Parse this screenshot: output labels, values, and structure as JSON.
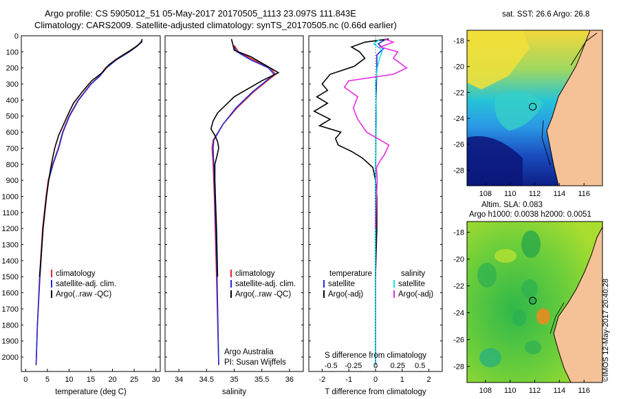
{
  "header": {
    "line1": "Argo profile: CS 5905012_51 05-May-2017 20170505_1113 23.097S 111.843E",
    "line2": "Climatology: CARS2009. Satellite-adjusted climatology: synTS_20170505.nc (0.66d earlier)"
  },
  "colors": {
    "clim": "#e8202a",
    "sat": "#1e2bd6",
    "argo": "#000000",
    "sal_sat": "#19e2e8",
    "sal_argo": "#e62ee6"
  },
  "chart_data": [
    {
      "type": "line",
      "name": "temperature",
      "xlabel": "temperature (deg C)",
      "xlim": [
        -1,
        31
      ],
      "ylim": [
        0,
        2090
      ],
      "yticks": [
        0,
        100,
        200,
        300,
        400,
        500,
        600,
        700,
        800,
        900,
        1000,
        1100,
        1200,
        1300,
        1400,
        1500,
        1600,
        1700,
        1800,
        1900,
        2000
      ],
      "ytick_labels": [
        "0",
        "100",
        "200",
        "300",
        "400",
        "500",
        "600",
        "700",
        "800",
        "900",
        "1000",
        "1100",
        "1200",
        "1300",
        "1400",
        "1500",
        "1600",
        "1700",
        "1800",
        "1900",
        "2000"
      ],
      "xticks": [
        0,
        5,
        10,
        15,
        20,
        25,
        30
      ],
      "xtick_labels": [
        "0",
        "5",
        "10",
        "15",
        "20",
        "25",
        "30"
      ],
      "legend": [
        "climatology",
        "satellite-adj. clim.",
        "Argo(..raw -QC)"
      ],
      "series": [
        {
          "name": "climatology",
          "depth": [
            30,
            60,
            100,
            150,
            200,
            250,
            300,
            400,
            500,
            600,
            700,
            800,
            900,
            1000,
            1200,
            1500,
            1800,
            2050
          ],
          "values": [
            26.8,
            25.8,
            23.6,
            20.6,
            18.4,
            17.0,
            15.0,
            12.1,
            10.0,
            8.5,
            7.5,
            6.2,
            5.2,
            4.7,
            3.9,
            3.2,
            2.7,
            2.4
          ]
        },
        {
          "name": "satellite-adj. clim.",
          "depth": [
            30,
            60,
            100,
            150,
            200,
            250,
            300,
            400,
            500,
            600,
            700,
            800,
            900,
            1000,
            1200,
            1500,
            1800,
            2050
          ],
          "values": [
            26.8,
            25.9,
            23.9,
            20.9,
            18.6,
            17.1,
            15.1,
            12.2,
            10.1,
            8.6,
            7.6,
            6.3,
            5.3,
            4.8,
            4.0,
            3.3,
            2.7,
            2.4
          ]
        },
        {
          "name": "Argo(..raw -QC)",
          "depth": [
            20,
            40,
            80,
            130,
            180,
            230,
            280,
            350,
            420,
            500,
            560,
            620,
            680,
            700,
            760,
            820,
            900,
            1000,
            1200,
            1400,
            1500
          ],
          "values": [
            26.8,
            26.7,
            24.8,
            21.8,
            19.2,
            17.6,
            15.2,
            13.0,
            11.0,
            9.6,
            8.6,
            7.6,
            6.9,
            6.7,
            6.2,
            5.8,
            5.3,
            4.8,
            4.0,
            3.5,
            3.2
          ]
        }
      ]
    },
    {
      "type": "line",
      "name": "salinity",
      "xlabel": "salinity",
      "xlim": [
        33.75,
        36.25
      ],
      "ylim": [
        0,
        2090
      ],
      "xticks": [
        34,
        34.5,
        35,
        35.5,
        36
      ],
      "xtick_labels": [
        "34",
        "34.5",
        "35",
        "35.5",
        "36"
      ],
      "legend": [
        "climatology",
        "satellite-adj. clim.",
        "Argo(..raw -QC)"
      ],
      "annotation": [
        "Argo Australia",
        "PI: Susan Wijffels"
      ],
      "series": [
        {
          "name": "climatology",
          "depth": [
            60,
            100,
            150,
            200,
            240,
            280,
            350,
            450,
            550,
            650,
            700,
            800,
            1000,
            1500,
            2050
          ],
          "values": [
            35.0,
            35.08,
            35.35,
            35.65,
            35.75,
            35.6,
            35.35,
            35.05,
            34.8,
            34.62,
            34.6,
            34.62,
            34.64,
            34.68,
            34.72
          ]
        },
        {
          "name": "satellite-adj. clim.",
          "depth": [
            60,
            100,
            150,
            200,
            240,
            280,
            350,
            450,
            550,
            650,
            700,
            800,
            1000,
            1500,
            2050
          ],
          "values": [
            34.98,
            35.05,
            35.3,
            35.62,
            35.72,
            35.58,
            35.33,
            35.03,
            34.8,
            34.63,
            34.62,
            34.63,
            34.65,
            34.69,
            34.72
          ]
        },
        {
          "name": "Argo(..raw -QC)",
          "depth": [
            20,
            60,
            90,
            130,
            180,
            230,
            280,
            330,
            380,
            430,
            480,
            530,
            580,
            620,
            660,
            700,
            760,
            800,
            900,
            1000,
            1200,
            1500
          ],
          "values": [
            34.95,
            34.98,
            35.0,
            35.3,
            35.55,
            35.8,
            35.5,
            35.25,
            35.0,
            34.85,
            34.7,
            34.62,
            34.58,
            34.65,
            34.7,
            34.72,
            34.68,
            34.65,
            34.65,
            34.66,
            34.68,
            34.7
          ]
        }
      ]
    },
    {
      "type": "line",
      "name": "difference",
      "xlabel": "T difference from climatology",
      "x2label": "S difference from climatology",
      "xlim": [
        -2.5,
        2.5
      ],
      "ylim": [
        0,
        2090
      ],
      "xticks": [
        -2,
        -1,
        0,
        1,
        2
      ],
      "xtick_labels": [
        "-2",
        "-1",
        "0",
        "1",
        "2"
      ],
      "s_xticks": [
        -0.5,
        -0.25,
        0,
        0.25,
        0.5
      ],
      "s_xtick_labels": [
        "-0.5",
        "-0.25",
        "0",
        "0.25",
        "0.5"
      ],
      "legend_headers": [
        "temperature",
        "salinity"
      ],
      "legend": [
        "satellite",
        "Argo(-adj)",
        "satellite",
        "Argo(-adj)"
      ],
      "series": [
        {
          "name": "T satellite",
          "depth": [
            20,
            50,
            80,
            120,
            200,
            400,
            700,
            1000,
            1500,
            2050
          ],
          "values": [
            0.4,
            0.1,
            0.3,
            0.05,
            0.05,
            0.02,
            0.01,
            0,
            0,
            0
          ]
        },
        {
          "name": "T Argo(-adj)",
          "depth": [
            20,
            40,
            70,
            100,
            140,
            190,
            240,
            300,
            340,
            380,
            420,
            470,
            520,
            560,
            600,
            640,
            680,
            720,
            760,
            790,
            820,
            900,
            1000,
            1200,
            1500
          ],
          "values": [
            0.5,
            -0.4,
            -0.9,
            -0.6,
            -0.4,
            -0.8,
            -1.7,
            -2.0,
            -1.8,
            -2.2,
            -1.8,
            -2.3,
            -1.7,
            -2.1,
            -1.3,
            -1.5,
            -1.4,
            -0.9,
            -0.5,
            -0.3,
            -0.1,
            0,
            0.05,
            0.05,
            0
          ]
        },
        {
          "name": "S satellite",
          "depth": [
            20,
            50,
            90,
            150,
            200,
            300,
            500,
            800,
            1200,
            2050
          ],
          "values": [
            0.05,
            -0.02,
            0.08,
            0.04,
            0.02,
            0.0,
            0.01,
            0.0,
            0.0,
            0.0
          ]
        },
        {
          "name": "S Argo(-adj)",
          "depth": [
            20,
            40,
            70,
            100,
            140,
            200,
            240,
            280,
            320,
            380,
            450,
            520,
            600,
            680,
            740,
            780,
            820,
            900,
            1000,
            1200
          ],
          "values": [
            0.1,
            0.2,
            0.05,
            0.25,
            0.2,
            0.35,
            0.2,
            -0.3,
            -0.35,
            -0.2,
            -0.25,
            -0.2,
            -0.1,
            0.15,
            0.1,
            0.05,
            0.01,
            0.02,
            0.01,
            0.0
          ]
        }
      ]
    }
  ],
  "sst_map": {
    "title": "sat. SST: 26.6  Argo: 26.8",
    "xticks": [
      108,
      110,
      112,
      114,
      116
    ],
    "yticks": [
      -18,
      -20,
      -22,
      -24,
      -26,
      -28
    ],
    "xtick_labels": [
      "108",
      "110",
      "112",
      "114",
      "116"
    ],
    "ytick_labels": [
      "-18",
      "-20",
      "-22",
      "-24",
      "-26",
      "-28"
    ],
    "xlim": [
      106.5,
      117.5
    ],
    "ylim": [
      -29.2,
      -17.2
    ],
    "float": [
      111.84,
      -23.1
    ]
  },
  "sla_map": {
    "title1": "Altim. SLA: 0.083",
    "title2": "Argo h1000: 0.0038 h2000: 0.0051",
    "xticks": [
      108,
      110,
      112,
      114,
      116
    ],
    "yticks": [
      -18,
      -20,
      -22,
      -24,
      -26,
      -28
    ],
    "xtick_labels": [
      "108",
      "110",
      "112",
      "114",
      "116"
    ],
    "ytick_labels": [
      "-18",
      "-20",
      "-22",
      "-24",
      "-26",
      "-28"
    ],
    "xlim": [
      106.5,
      117.5
    ],
    "ylim": [
      -29.2,
      -17.2
    ],
    "float": [
      111.84,
      -23.1
    ]
  },
  "copyright": "©IMOS 12-May-2017 20:40:28"
}
